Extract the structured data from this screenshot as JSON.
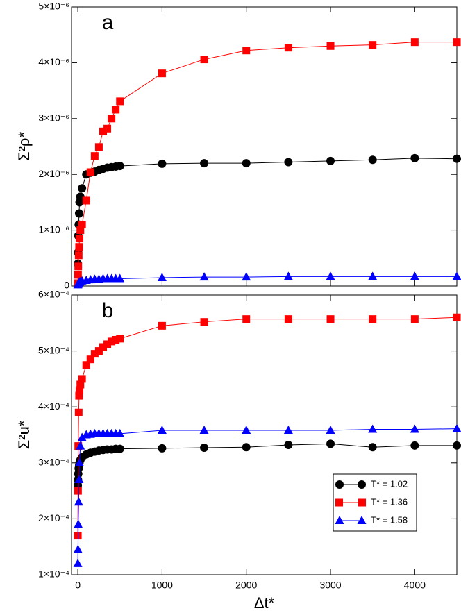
{
  "chart_data": [
    {
      "type": "line",
      "panel_label": "a",
      "y_label": "Σ²ρ*",
      "x": [
        0,
        2,
        5,
        10,
        15,
        20,
        30,
        50,
        100,
        150,
        200,
        250,
        300,
        350,
        400,
        450,
        500,
        1000,
        1500,
        2000,
        2500,
        3000,
        3500,
        4000,
        4500
      ],
      "xlim": [
        -75,
        4500
      ],
      "xticks": [
        0,
        1000,
        2000,
        3000,
        4000
      ],
      "ylim": [
        0,
        5e-06
      ],
      "yticks": [
        0,
        {
          "value": 1e-06,
          "label": "1×10⁻⁶"
        },
        {
          "value": 2e-06,
          "label": "2×10⁻⁶"
        },
        {
          "value": 3e-06,
          "label": "3×10⁻⁶"
        },
        {
          "value": 4e-06,
          "label": "4×10⁻⁶"
        },
        {
          "value": 5e-06,
          "label": "5×10⁻⁶"
        }
      ],
      "series": [
        {
          "color": "#000000",
          "marker": "circle",
          "values": [
            4e-07,
            6e-07,
            9e-07,
            1.1e-06,
            1.3e-06,
            1.5e-06,
            1.6e-06,
            1.75e-06,
            2e-06,
            2.03e-06,
            2.05e-06,
            2.08e-06,
            2.1e-06,
            2.12e-06,
            2.13e-06,
            2.14e-06,
            2.15e-06,
            2.19e-06,
            2.2e-06,
            2.2e-06,
            2.22e-06,
            2.24e-06,
            2.26e-06,
            2.29e-06,
            2.28e-06
          ]
        },
        {
          "color": "#ff0000",
          "marker": "square",
          "values": [
            5e-08,
            2e-07,
            3.5e-07,
            5.5e-07,
            7e-07,
            8.5e-07,
            1e-06,
            1.1e-06,
            1.53e-06,
            2.04e-06,
            2.33e-06,
            2.49e-06,
            2.77e-06,
            2.82e-06,
            3e-06,
            3.16e-06,
            3.31e-06,
            3.81e-06,
            4.06e-06,
            4.22e-06,
            4.27e-06,
            4.3e-06,
            4.32e-06,
            4.37e-06,
            4.37e-06
          ]
        },
        {
          "color": "#0000ff",
          "marker": "triangle",
          "values": [
            2e-08,
            3e-08,
            4e-08,
            5e-08,
            6e-08,
            7e-08,
            8e-08,
            9e-08,
            1e-07,
            1.1e-07,
            1.2e-07,
            1.2e-07,
            1.3e-07,
            1.3e-07,
            1.3e-07,
            1.3e-07,
            1.3e-07,
            1.5e-07,
            1.6e-07,
            1.6e-07,
            1.7e-07,
            1.7e-07,
            1.7e-07,
            1.7e-07,
            1.7e-07
          ]
        }
      ]
    },
    {
      "type": "line",
      "panel_label": "b",
      "y_label": "Σ²u*",
      "x_label": "Δt*",
      "x": [
        0,
        2,
        5,
        10,
        15,
        20,
        30,
        50,
        100,
        150,
        200,
        250,
        300,
        350,
        400,
        450,
        500,
        1000,
        1500,
        2000,
        2500,
        3000,
        3500,
        4000,
        4500
      ],
      "xlim": [
        -75,
        4500
      ],
      "xticks": [
        0,
        1000,
        2000,
        3000,
        4000
      ],
      "ylim": [
        0.0001,
        0.0006
      ],
      "yticks": [
        {
          "value": 0.0001,
          "label": "1×10⁻⁴"
        },
        {
          "value": 0.0002,
          "label": "2×10⁻⁴"
        },
        {
          "value": 0.0003,
          "label": "3×10⁻⁴"
        },
        {
          "value": 0.0004,
          "label": "4×10⁻⁴"
        },
        {
          "value": 0.0005,
          "label": "5×10⁻⁴"
        },
        {
          "value": 0.0006,
          "label": "6×10⁻⁴"
        }
      ],
      "legend": "lower right",
      "series": [
        {
          "name": "T* = 1.02",
          "color": "#000000",
          "marker": "circle",
          "values": [
            0.00026,
            0.00027,
            0.00028,
            0.00029,
            0.000295,
            0.0003,
            0.000305,
            0.00031,
            0.000315,
            0.000318,
            0.00032,
            0.000322,
            0.000323,
            0.000324,
            0.000324,
            0.000325,
            0.000325,
            0.000326,
            0.000327,
            0.000328,
            0.000332,
            0.000334,
            0.000328,
            0.000331,
            0.000331
          ]
        },
        {
          "name": "T* = 1.36",
          "color": "#ff0000",
          "marker": "square",
          "values": [
            0.00017,
            0.00025,
            0.00033,
            0.00039,
            0.00042,
            0.00043,
            0.00044,
            0.00045,
            0.000475,
            0.000485,
            0.000495,
            0.0005,
            0.000507,
            0.000512,
            0.000517,
            0.00052,
            0.000522,
            0.000545,
            0.000552,
            0.000557,
            0.000557,
            0.000557,
            0.000557,
            0.000557,
            0.00056
          ]
        },
        {
          "name": "T* = 1.58",
          "color": "#0000ff",
          "marker": "triangle",
          "values": [
            0.00012,
            0.000145,
            0.00019,
            0.00023,
            0.00027,
            0.0003,
            0.00033,
            0.000345,
            0.00035,
            0.000351,
            0.000352,
            0.000352,
            0.000352,
            0.000352,
            0.000352,
            0.000352,
            0.000352,
            0.000358,
            0.000358,
            0.000358,
            0.000358,
            0.000358,
            0.00036,
            0.00036,
            0.000361
          ]
        }
      ]
    }
  ]
}
